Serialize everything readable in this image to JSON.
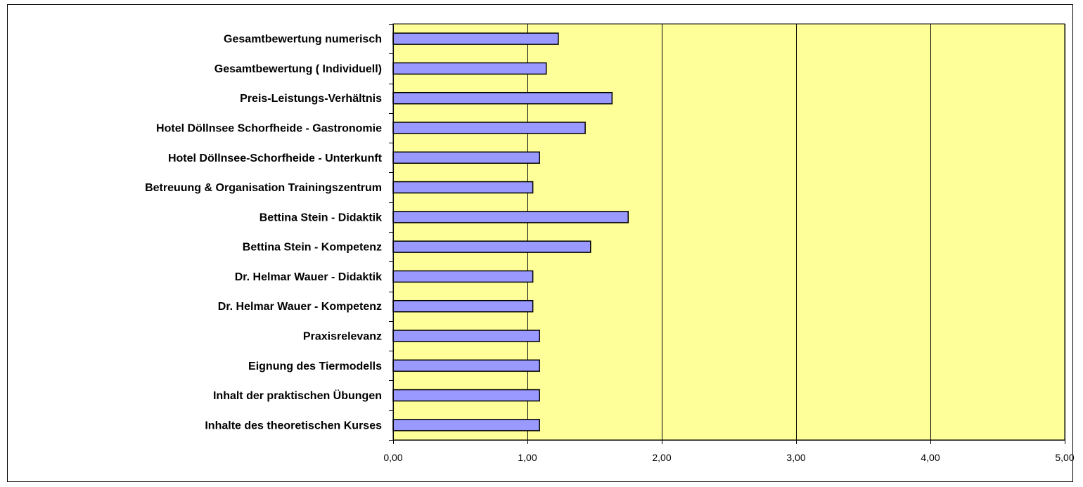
{
  "chart_data": {
    "type": "bar",
    "orientation": "horizontal",
    "title": "",
    "xlabel": "",
    "ylabel": "",
    "categories": [
      "Gesamtbewertung numerisch ",
      "Gesamtbewertung ( Individuell)",
      "Preis-Leistungs-Verhältnis ",
      "Hotel Döllnsee Schorfheide - Gastronomie",
      "Hotel Döllnsee-Schorfheide - Unterkunft",
      "Betreuung & Organisation Trainingszentrum",
      "Bettina Stein  - Didaktik",
      "Bettina Stein - Kompetenz",
      "Dr. Helmar Wauer  - Didaktik",
      "Dr. Helmar Wauer - Kompetenz",
      "Praxisrelevanz",
      "Eignung des Tiermodells",
      "Inhalt der praktischen Übungen",
      "Inhalte des theoretischen Kurses"
    ],
    "values": [
      1.23,
      1.14,
      1.63,
      1.43,
      1.09,
      1.04,
      1.75,
      1.47,
      1.04,
      1.04,
      1.09,
      1.09,
      1.09,
      1.09
    ],
    "xlim": [
      0,
      5
    ],
    "xticks": [
      0,
      1,
      2,
      3,
      4,
      5
    ],
    "xtick_labels": [
      "0,00",
      "1,00",
      "2,00",
      "3,00",
      "4,00",
      "5,00"
    ],
    "grid": true,
    "legend": "none",
    "colors": {
      "bar_fill": "#9999FF",
      "bar_stroke": "#000000",
      "plot_background": "#FFFF99",
      "gridline": "#000000"
    }
  }
}
